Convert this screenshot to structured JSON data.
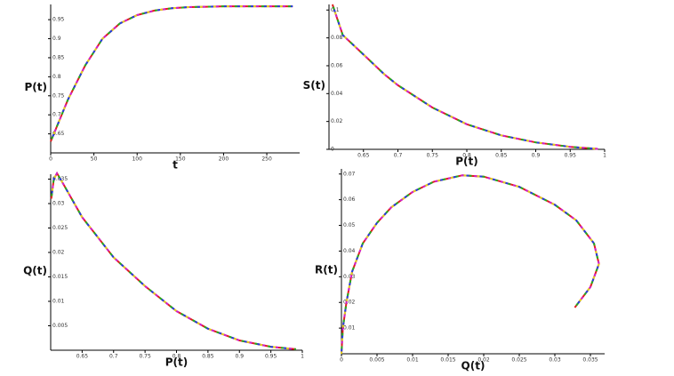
{
  "chart_data": [
    {
      "type": "line",
      "x_label": "t",
      "y_label": "P(t)",
      "x": [
        0,
        20,
        40,
        60,
        80,
        100,
        120,
        140,
        160,
        180,
        200,
        220,
        240,
        260,
        280
      ],
      "values": [
        0.63,
        0.74,
        0.83,
        0.9,
        0.94,
        0.962,
        0.974,
        0.98,
        0.983,
        0.984,
        0.985,
        0.985,
        0.985,
        0.985,
        0.985
      ],
      "xlim": [
        0,
        288
      ],
      "ylim": [
        0.6,
        0.99
      ],
      "xticks": [
        0,
        50,
        100,
        150,
        200,
        250
      ],
      "yticks": [
        0.65,
        0.7,
        0.75,
        0.8,
        0.85,
        0.9,
        0.95
      ],
      "colors": [
        "#e02020",
        "#20b020",
        "#2040e0",
        "#e0d020",
        "#d020d0"
      ]
    },
    {
      "type": "line",
      "x_label": "P(t)",
      "y_label": "S(t)",
      "x": [
        0.605,
        0.62,
        0.65,
        0.68,
        0.7,
        0.75,
        0.8,
        0.85,
        0.9,
        0.95,
        0.99
      ],
      "values": [
        0.104,
        0.082,
        0.068,
        0.054,
        0.046,
        0.03,
        0.018,
        0.01,
        0.005,
        0.0018,
        0.0003
      ],
      "xlim": [
        0.6,
        1
      ],
      "ylim": [
        0,
        0.104
      ],
      "xticks": [
        0.65,
        0.7,
        0.75,
        0.8,
        0.85,
        0.9,
        0.95,
        1
      ],
      "yticks": [
        0,
        0.02,
        0.04,
        0.06,
        0.08,
        0.1
      ],
      "colors": [
        "#e02020",
        "#20b020",
        "#2040e0",
        "#e0d020",
        "#d020d0"
      ]
    },
    {
      "type": "line",
      "x_label": "P(t)",
      "y_label": "Q(t)",
      "x": [
        0.601,
        0.605,
        0.61,
        0.62,
        0.65,
        0.7,
        0.75,
        0.8,
        0.85,
        0.9,
        0.95,
        0.99
      ],
      "values": [
        0.031,
        0.035,
        0.0362,
        0.034,
        0.0272,
        0.019,
        0.0131,
        0.008,
        0.0044,
        0.002,
        0.0007,
        0.0002
      ],
      "xlim": [
        0.6,
        1
      ],
      "ylim": [
        0,
        0.036
      ],
      "xticks": [
        0.65,
        0.7,
        0.75,
        0.8,
        0.85,
        0.9,
        0.95,
        1
      ],
      "yticks": [
        0.005,
        0.01,
        0.015,
        0.02,
        0.025,
        0.03,
        0.035
      ],
      "colors": [
        "#e02020",
        "#20b020",
        "#2040e0",
        "#e0d020",
        "#d020d0"
      ]
    },
    {
      "type": "line",
      "x_label": "Q(t)",
      "y_label": "R(t)",
      "x": [
        0.0328,
        0.035,
        0.0362,
        0.0355,
        0.033,
        0.03,
        0.025,
        0.02,
        0.017,
        0.013,
        0.01,
        0.007,
        0.005,
        0.003,
        0.0015,
        0.0007,
        0.0002,
        0
      ],
      "values": [
        0.018,
        0.026,
        0.035,
        0.043,
        0.052,
        0.058,
        0.065,
        0.069,
        0.0695,
        0.067,
        0.063,
        0.057,
        0.051,
        0.043,
        0.032,
        0.02,
        0.01,
        0
      ],
      "xlim": [
        0,
        0.037
      ],
      "ylim": [
        0,
        0.072
      ],
      "xticks": [
        0,
        0.005,
        0.01,
        0.015,
        0.02,
        0.025,
        0.03,
        0.035
      ],
      "yticks": [
        0.01,
        0.02,
        0.03,
        0.04,
        0.05,
        0.06,
        0.07
      ],
      "colors": [
        "#e02020",
        "#20b020",
        "#2040e0",
        "#e0d020",
        "#d020d0"
      ]
    }
  ]
}
